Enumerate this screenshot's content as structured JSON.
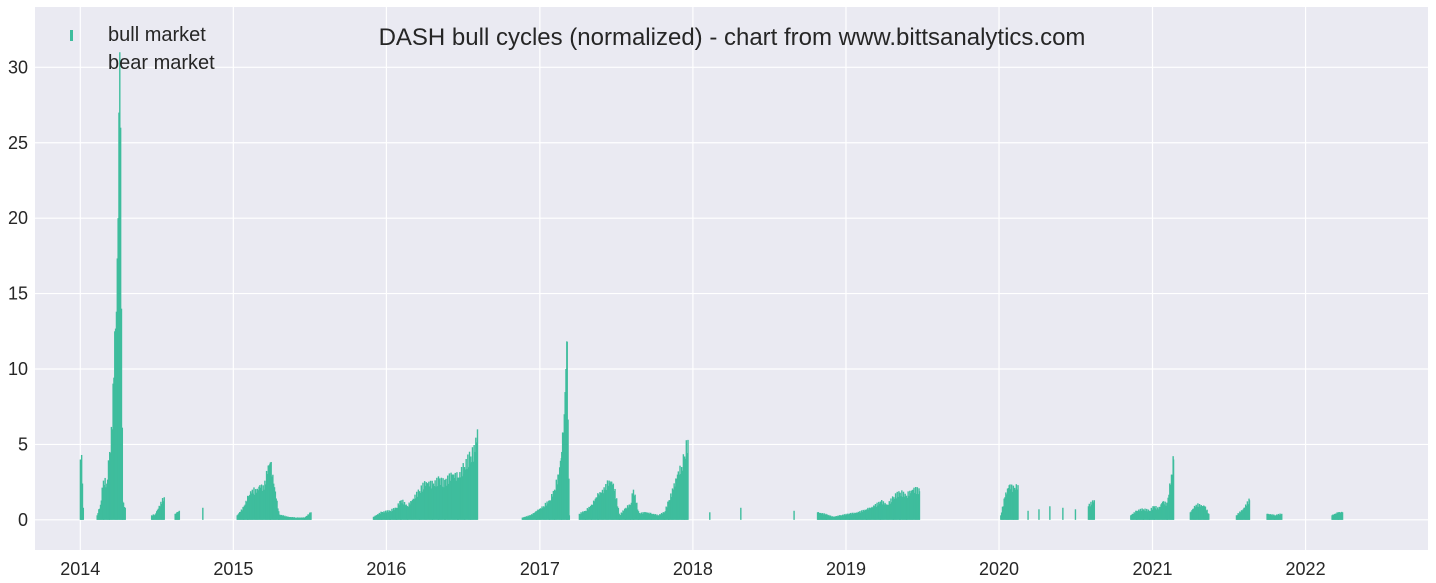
{
  "chart_data": {
    "type": "bar",
    "title": "DASH bull cycles (normalized)  - chart from www.bittsanalytics.com",
    "xlabel": "",
    "ylabel": "",
    "x_axis": {
      "type": "date",
      "range": [
        "2013-09-15",
        "2022-10-20"
      ],
      "tick_labels": [
        "2014",
        "2015",
        "2016",
        "2017",
        "2018",
        "2019",
        "2020",
        "2021",
        "2022"
      ]
    },
    "y_axis": {
      "range": [
        -2,
        34
      ],
      "tick_values": [
        0,
        5,
        10,
        15,
        20,
        25,
        30
      ],
      "tick_labels": [
        "0",
        "5",
        "10",
        "15",
        "20",
        "25",
        "30"
      ]
    },
    "grid": true,
    "legend": {
      "placement": "top-left",
      "entries": [
        "bull market",
        "bear market"
      ]
    },
    "colors": {
      "bull": "#3ebd9d",
      "plot_background": "#eaeaf2",
      "grid": "#ffffff"
    },
    "series": [
      {
        "name": "bull market",
        "points": [
          [
            "2014-01-01",
            4.0
          ],
          [
            "2014-01-04",
            4.3
          ],
          [
            "2014-01-08",
            0.8
          ],
          [
            "2014-02-10",
            0.3
          ],
          [
            "2014-02-18",
            1.0
          ],
          [
            "2014-02-25",
            2.6
          ],
          [
            "2014-03-05",
            2.4
          ],
          [
            "2014-03-12",
            4.5
          ],
          [
            "2014-03-18",
            6.0
          ],
          [
            "2014-03-24",
            12.5
          ],
          [
            "2014-03-28",
            13.8
          ],
          [
            "2014-04-01",
            20.0
          ],
          [
            "2014-04-03",
            27.0
          ],
          [
            "2014-04-05",
            31.0
          ],
          [
            "2014-04-07",
            26.0
          ],
          [
            "2014-04-09",
            14.0
          ],
          [
            "2014-04-12",
            1.2
          ],
          [
            "2014-04-18",
            0.8
          ],
          [
            "2014-06-20",
            0.3
          ],
          [
            "2014-06-28",
            0.35
          ],
          [
            "2014-07-20",
            1.5
          ],
          [
            "2014-08-15",
            0.4
          ],
          [
            "2014-08-25",
            0.6
          ],
          [
            "2014-10-20",
            0.8
          ],
          [
            "2015-01-10",
            0.3
          ],
          [
            "2015-01-25",
            0.8
          ],
          [
            "2015-02-05",
            1.5
          ],
          [
            "2015-02-15",
            2.0
          ],
          [
            "2015-02-25",
            1.8
          ],
          [
            "2015-03-05",
            2.3
          ],
          [
            "2015-03-15",
            2.0
          ],
          [
            "2015-03-25",
            3.6
          ],
          [
            "2015-03-30",
            3.8
          ],
          [
            "2015-04-20",
            0.35
          ],
          [
            "2015-05-10",
            0.2
          ],
          [
            "2015-05-30",
            0.15
          ],
          [
            "2015-06-20",
            0.15
          ],
          [
            "2015-07-05",
            0.5
          ],
          [
            "2015-12-01",
            0.2
          ],
          [
            "2015-12-20",
            0.5
          ],
          [
            "2016-01-10",
            0.6
          ],
          [
            "2016-01-25",
            0.8
          ],
          [
            "2016-02-05",
            1.3
          ],
          [
            "2016-02-20",
            0.9
          ],
          [
            "2016-03-05",
            1.4
          ],
          [
            "2016-03-20",
            1.9
          ],
          [
            "2016-04-05",
            2.5
          ],
          [
            "2016-04-20",
            2.3
          ],
          [
            "2016-05-05",
            2.6
          ],
          [
            "2016-05-20",
            2.4
          ],
          [
            "2016-06-05",
            3.0
          ],
          [
            "2016-06-20",
            2.8
          ],
          [
            "2016-07-05",
            3.5
          ],
          [
            "2016-07-20",
            4.2
          ],
          [
            "2016-07-30",
            4.5
          ],
          [
            "2016-08-05",
            6.0
          ],
          [
            "2016-11-20",
            0.15
          ],
          [
            "2016-12-10",
            0.3
          ],
          [
            "2016-12-25",
            0.6
          ],
          [
            "2017-01-10",
            0.9
          ],
          [
            "2017-01-25",
            1.3
          ],
          [
            "2017-02-05",
            2.0
          ],
          [
            "2017-02-15",
            3.0
          ],
          [
            "2017-02-22",
            4.5
          ],
          [
            "2017-02-28",
            7.0
          ],
          [
            "2017-03-04",
            10.0
          ],
          [
            "2017-03-07",
            11.8
          ],
          [
            "2017-03-12",
            0.3
          ],
          [
            "2017-04-05",
            0.4
          ],
          [
            "2017-04-20",
            0.6
          ],
          [
            "2017-05-05",
            1.0
          ],
          [
            "2017-05-20",
            1.7
          ],
          [
            "2017-06-05",
            2.0
          ],
          [
            "2017-06-15",
            2.6
          ],
          [
            "2017-06-25",
            2.4
          ],
          [
            "2017-07-10",
            0.3
          ],
          [
            "2017-07-25",
            0.8
          ],
          [
            "2017-08-05",
            1.0
          ],
          [
            "2017-08-12",
            2.0
          ],
          [
            "2017-08-25",
            0.4
          ],
          [
            "2017-09-10",
            0.5
          ],
          [
            "2017-09-25",
            0.4
          ],
          [
            "2017-10-10",
            0.3
          ],
          [
            "2017-10-25",
            0.5
          ],
          [
            "2017-11-05",
            1.3
          ],
          [
            "2017-11-15",
            2.0
          ],
          [
            "2017-11-25",
            3.0
          ],
          [
            "2017-12-05",
            3.5
          ],
          [
            "2017-12-12",
            4.2
          ],
          [
            "2017-12-20",
            5.3
          ],
          [
            "2018-02-10",
            0.5
          ],
          [
            "2018-04-25",
            0.8
          ],
          [
            "2018-08-30",
            0.6
          ],
          [
            "2018-10-25",
            0.5
          ],
          [
            "2018-11-15",
            0.35
          ],
          [
            "2018-12-01",
            0.2
          ],
          [
            "2018-12-20",
            0.3
          ],
          [
            "2019-01-10",
            0.4
          ],
          [
            "2019-02-01",
            0.5
          ],
          [
            "2019-02-20",
            0.7
          ],
          [
            "2019-03-10",
            0.9
          ],
          [
            "2019-03-25",
            1.2
          ],
          [
            "2019-04-10",
            1.0
          ],
          [
            "2019-04-25",
            1.5
          ],
          [
            "2019-05-10",
            1.8
          ],
          [
            "2019-05-25",
            1.6
          ],
          [
            "2019-06-10",
            2.0
          ],
          [
            "2019-06-25",
            1.9
          ],
          [
            "2020-01-05",
            0.3
          ],
          [
            "2020-01-15",
            1.5
          ],
          [
            "2020-01-25",
            2.3
          ],
          [
            "2020-02-05",
            2.0
          ],
          [
            "2020-02-15",
            2.3
          ],
          [
            "2020-03-10",
            0.6
          ],
          [
            "2020-04-05",
            0.7
          ],
          [
            "2020-05-01",
            0.9
          ],
          [
            "2020-06-01",
            0.8
          ],
          [
            "2020-07-01",
            0.7
          ],
          [
            "2020-08-01",
            0.9
          ],
          [
            "2020-08-15",
            1.3
          ],
          [
            "2020-11-10",
            0.3
          ],
          [
            "2020-11-25",
            0.6
          ],
          [
            "2020-12-10",
            0.7
          ],
          [
            "2020-12-25",
            0.6
          ],
          [
            "2021-01-05",
            0.9
          ],
          [
            "2021-01-15",
            0.7
          ],
          [
            "2021-01-25",
            1.2
          ],
          [
            "2021-02-05",
            1.0
          ],
          [
            "2021-02-15",
            3.0
          ],
          [
            "2021-02-20",
            4.0
          ],
          [
            "2021-04-01",
            0.5
          ],
          [
            "2021-04-15",
            1.0
          ],
          [
            "2021-05-05",
            0.9
          ],
          [
            "2021-05-15",
            0.4
          ],
          [
            "2021-07-20",
            0.3
          ],
          [
            "2021-08-05",
            0.7
          ],
          [
            "2021-08-20",
            1.3
          ],
          [
            "2021-10-01",
            0.4
          ],
          [
            "2021-10-20",
            0.3
          ],
          [
            "2021-11-05",
            0.4
          ],
          [
            "2022-03-05",
            0.3
          ],
          [
            "2022-03-20",
            0.5
          ],
          [
            "2022-03-30",
            0.5
          ]
        ]
      },
      {
        "name": "bear market",
        "points": []
      }
    ]
  }
}
